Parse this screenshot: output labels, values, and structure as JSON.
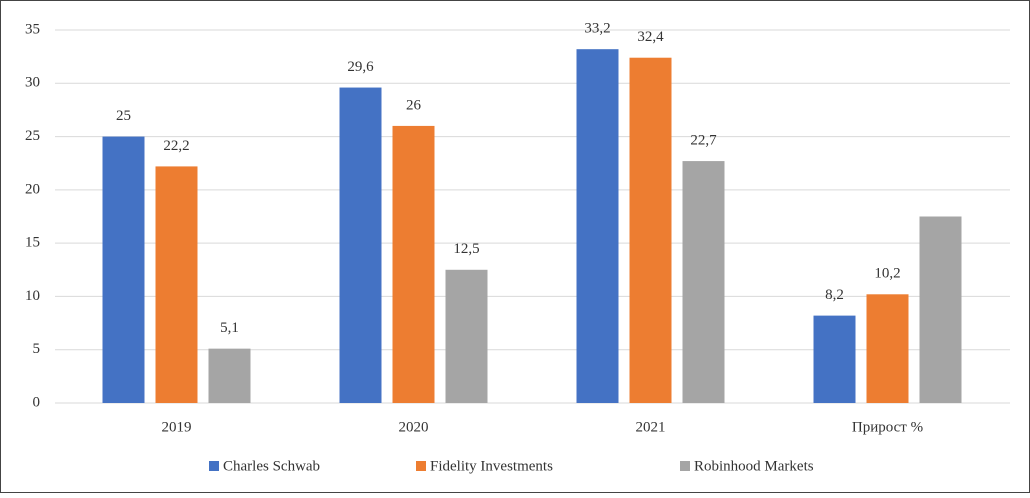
{
  "chart_data": {
    "type": "bar",
    "categories": [
      "2019",
      "2020",
      "2021",
      "Прирост %"
    ],
    "series": [
      {
        "name": "Charles Schwab",
        "color": "#4472c4",
        "values": [
          25,
          29.6,
          33.2,
          8.2
        ],
        "value_labels": [
          "25",
          "29,6",
          "33,2",
          "8,2"
        ]
      },
      {
        "name": "Fidelity Investments",
        "color": "#ed7d31",
        "values": [
          22.2,
          26,
          32.4,
          10.2
        ],
        "value_labels": [
          "22,2",
          "26",
          "32,4",
          "10,2"
        ]
      },
      {
        "name": "Robinhood Markets",
        "color": "#a5a5a5",
        "values": [
          5.1,
          12.5,
          22.7,
          17.5
        ],
        "value_labels": [
          "5,1",
          "12,5",
          "22,7",
          null
        ]
      }
    ],
    "ylim": [
      0,
      35
    ],
    "yticks": [
      0,
      5,
      10,
      15,
      20,
      25,
      30,
      35
    ],
    "grid": true,
    "legend": "bottom"
  }
}
